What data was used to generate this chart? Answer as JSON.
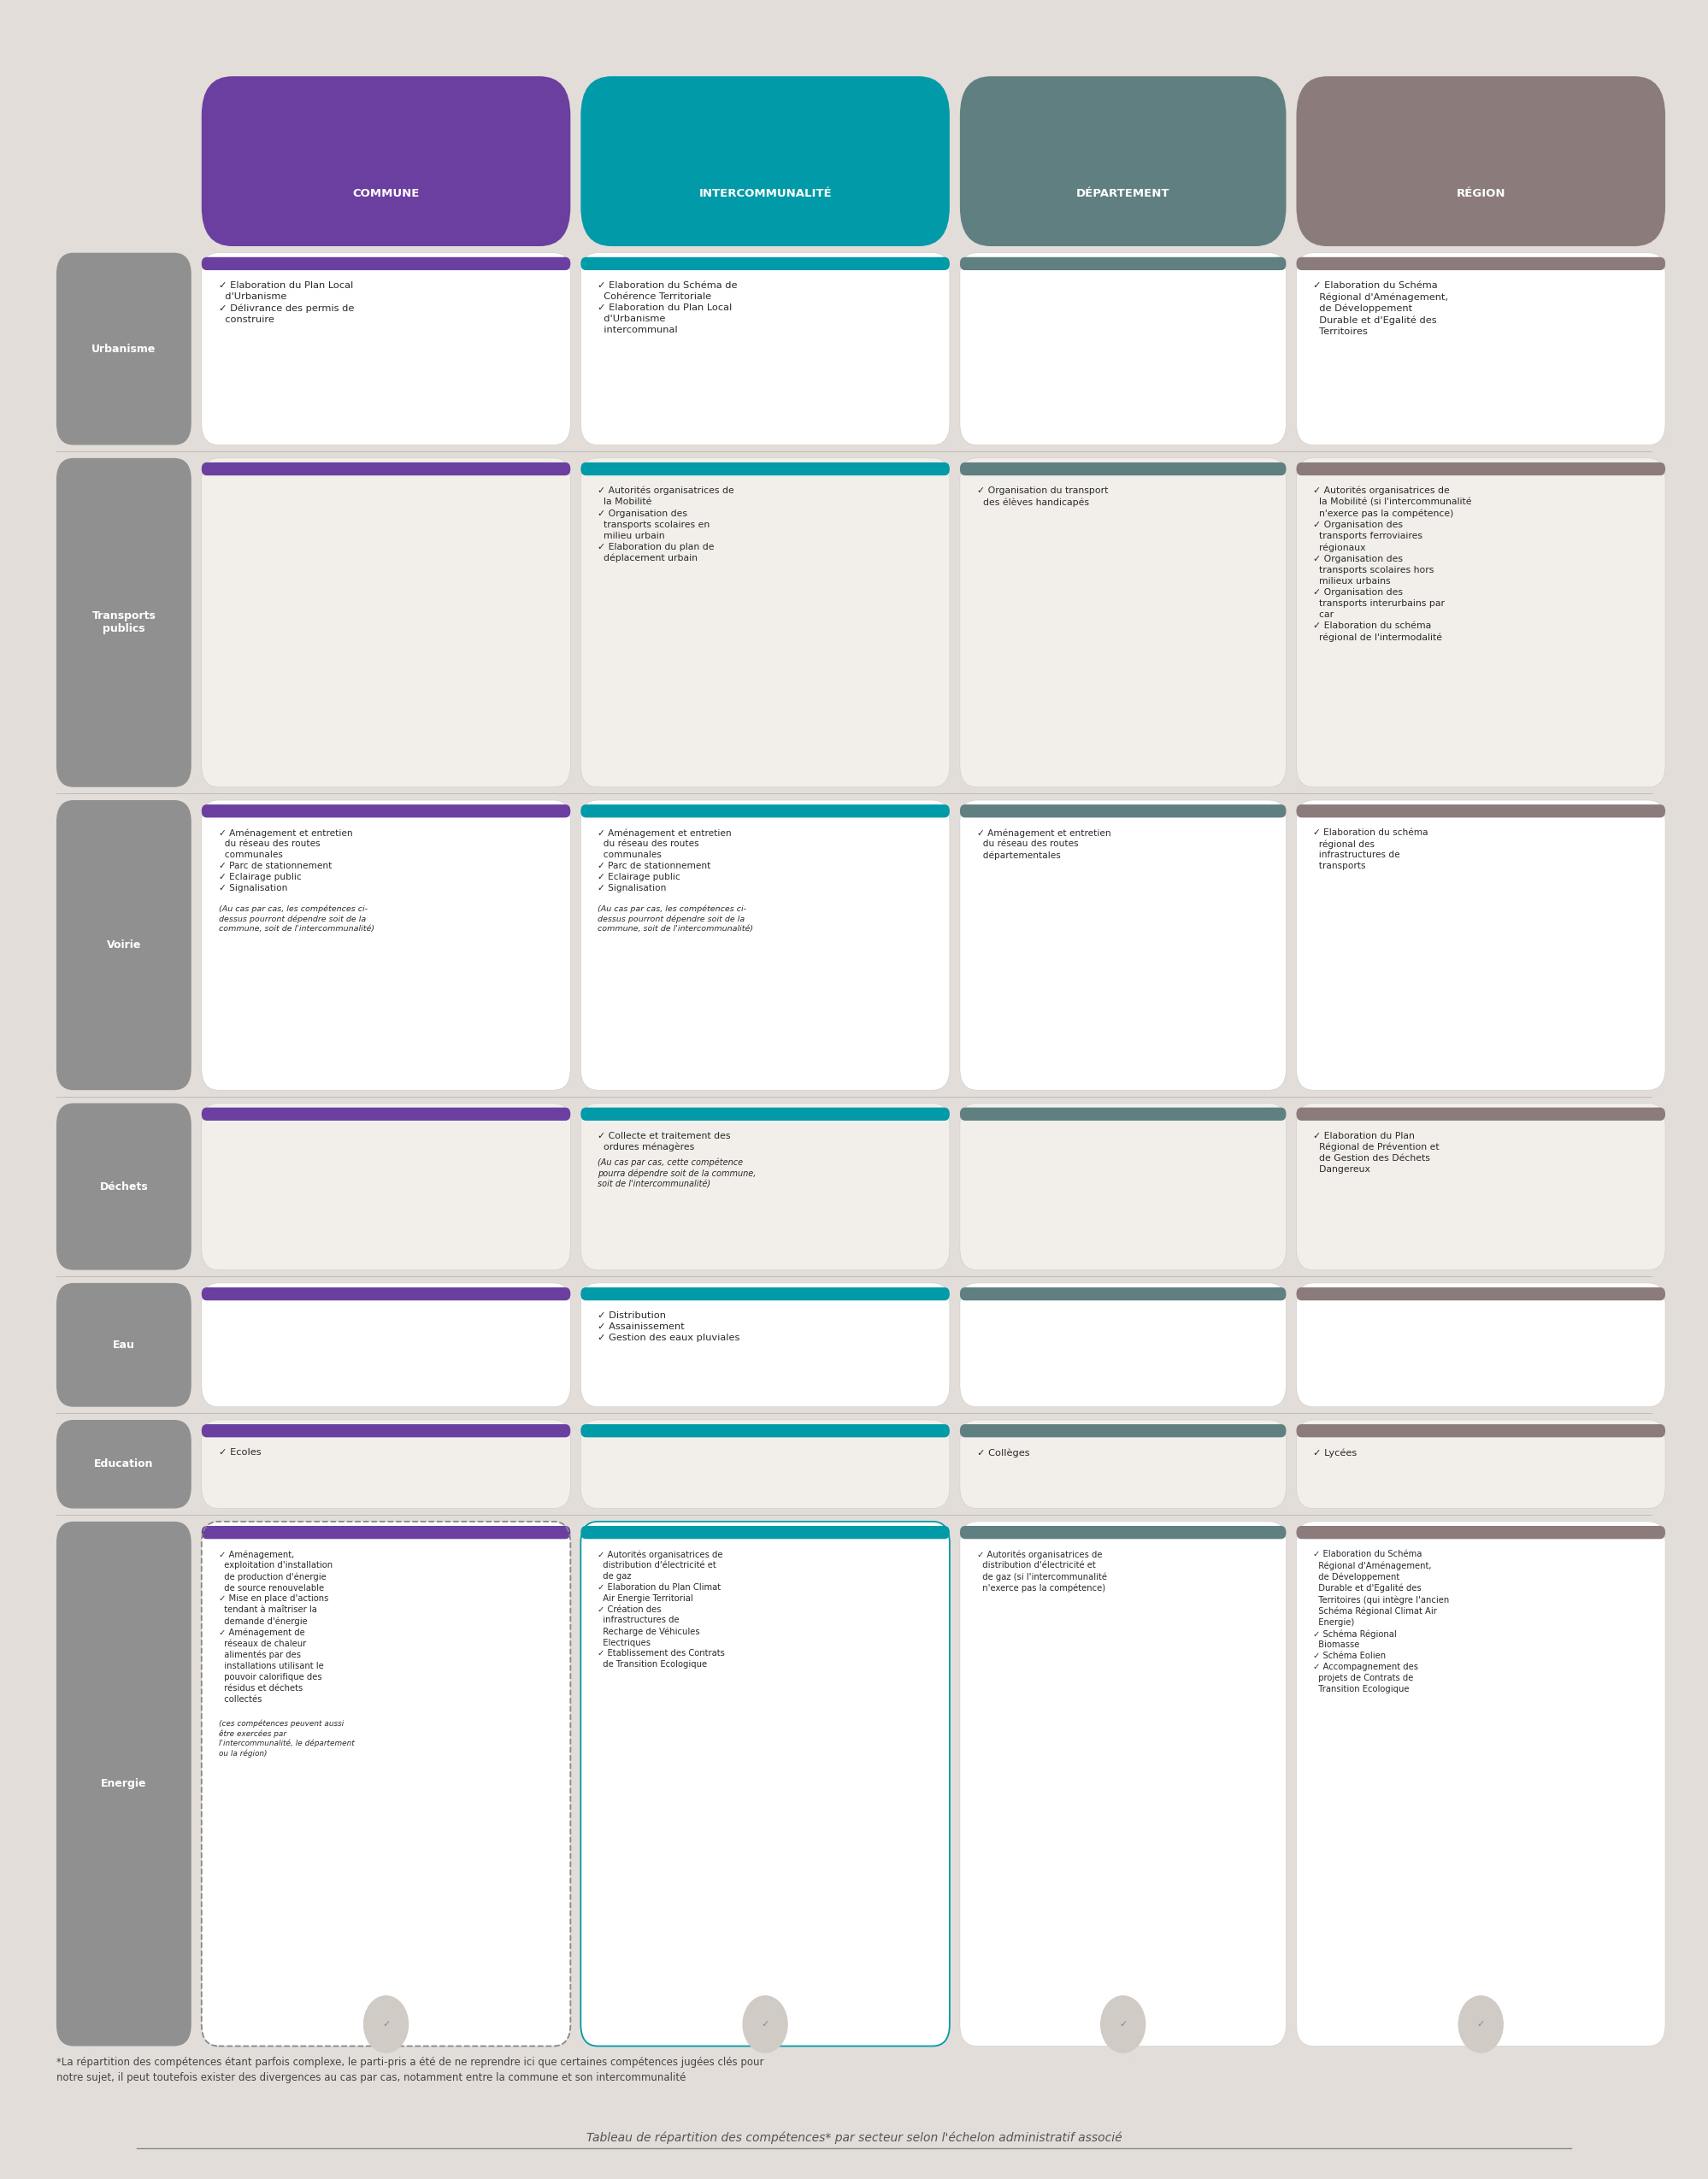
{
  "fig_width": 19.98,
  "fig_height": 25.49,
  "bg_color": "#e2ddd8",
  "header_colors": {
    "commune": "#6b3fa0",
    "intercommunalite": "#009aa8",
    "departement": "#5f7f80",
    "region": "#8c7b7b"
  },
  "header_labels": [
    "COMMUNE",
    "INTERCOMMUNALITÉ",
    "DÉPARTEMENT",
    "RÉGION"
  ],
  "row_label_bg": "#999999",
  "row_labels": [
    "Urbanisme",
    "Transports\npublics",
    "Voirie",
    "Déchets",
    "Eau",
    "Education",
    "Energie"
  ],
  "footer_note": "*La répartition des compétences étant parfois complexe, le parti-pris a été de ne reprendre ici que certaines compétences jugées clés pour\nnotre sujet, il peut toutefois exister des divergences au cas par cas, notamment entre la commune et son intercommunalité",
  "title": "Tableau de répartition des compétences* par secteur selon l'échelon administratif associé",
  "content": {
    "urbanisme": {
      "commune": "✓ Elaboration du Plan Local\n  d'Urbanisme\n✓ Délivrance des permis de\n  construire",
      "intercommunalite": "✓ Elaboration du Schéma de\n  Cohérence Territoriale\n✓ Elaboration du Plan Local\n  d'Urbanisme\n  intercommunal",
      "departement": "",
      "region": "✓ Elaboration du Schéma\n  Régional d'Aménagement,\n  de Développement\n  Durable et d'Egalité des\n  Territoires"
    },
    "transports": {
      "commune": "",
      "intercommunalite": "✓ Autorités organisatrices de\n  la Mobilité\n✓ Organisation des\n  transports scolaires en\n  milieu urbain\n✓ Elaboration du plan de\n  déplacement urbain",
      "departement": "✓ Organisation du transport\n  des élèves handicapés",
      "region": "✓ Autorités organisatrices de\n  la Mobilité (si l'intercommunalité\n  n'exerce pas la compétence)\n✓ Organisation des\n  transports ferroviaires\n  régionaux\n✓ Organisation des\n  transports scolaires hors\n  milieux urbains\n✓ Organisation des\n  transports interurbains par\n  car\n✓ Elaboration du schéma\n  régional de l'intermodalité"
    },
    "voirie": {
      "commune": "✓ Aménagement et entretien\n  du réseau des routes\n  communales\n✓ Parc de stationnement\n✓ Eclairage public\n✓ Signalisation\n(Au cas par cas, les compétences ci-\ndessus pourront dépendre soit de la\ncommune, soit de l'intercommunalité)",
      "intercommunalite": "✓ Aménagement et entretien\n  du réseau des routes\n  communales\n✓ Parc de stationnement\n✓ Eclairage public\n✓ Signalisation\n(Au cas par cas, les compétences ci-\ndessus pourront dépendre soit de la\ncommune, soit de l'intercommunalité)",
      "departement": "✓ Aménagement et entretien\n  du réseau des routes\n  départementales",
      "region": "✓ Elaboration du schéma\n  régional des\n  infrastructures de\n  transports"
    },
    "dechets": {
      "commune": "",
      "intercommunalite": "✓ Collecte et traitement des\n  ordures ménagères\n(Au cas par cas, cette compétence\npourra dépendre soit de la commune,\nsoit de l'intercommunalité)",
      "departement": "",
      "region": "✓ Elaboration du Plan\n  Régional de Prévention et\n  de Gestion des Déchets\n  Dangereux"
    },
    "eau": {
      "commune": "",
      "intercommunalite": "✓ Distribution\n✓ Assainissement\n✓ Gestion des eaux pluviales",
      "departement": "",
      "region": ""
    },
    "education": {
      "commune": "✓ Ecoles",
      "intercommunalite": "",
      "departement": "✓ Collèges",
      "region": "✓ Lycées"
    },
    "energie": {
      "commune": "✓ Aménagement,\n  exploitation d'installation\n  de production d'énergie\n  de source renouvelable\n✓ Mise en place d'actions\n  tendant à maîtriser la\n  demande d'énergie\n✓ Aménagement de\n  réseaux de chaleur\n  alimentés par des\n  installations utilisant le\n  pouvoir calorifique des\n  résidus et déchets\n  collectés\n(ces compétences peuvent aussi\nêtre exercées par\nl'intercommunalité, le département\nou la région)",
      "intercommunalite": "✓ Autorités organisatrices de\n  distribution d'électricité et\n  de gaz\n✓ Elaboration du Plan Climat\n  Air Energie Territorial\n✓ Création des\n  infrastructures de\n  Recharge de Véhicules\n  Electriques\n✓ Etablissement des Contrats\n  de Transition Ecologique",
      "departement": "✓ Autorités organisatrices de\n  distribution d'électricité et\n  de gaz (si l'intercommunalité\n  n'exerce pas la compétence)",
      "region": "✓ Elaboration du Schéma\n  Régional d'Aménagement,\n  de Développement\n  Durable et d'Egalité des\n  Territoires (qui intègre l'ancien\n  Schéma Régional Climat Air\n  Energie)\n✓ Schéma Régional\n  Biomasse\n✓ Schéma Eolien\n✓ Accompagnement des\n  projets de Contrats de\n  Transition Ecologique"
    }
  }
}
